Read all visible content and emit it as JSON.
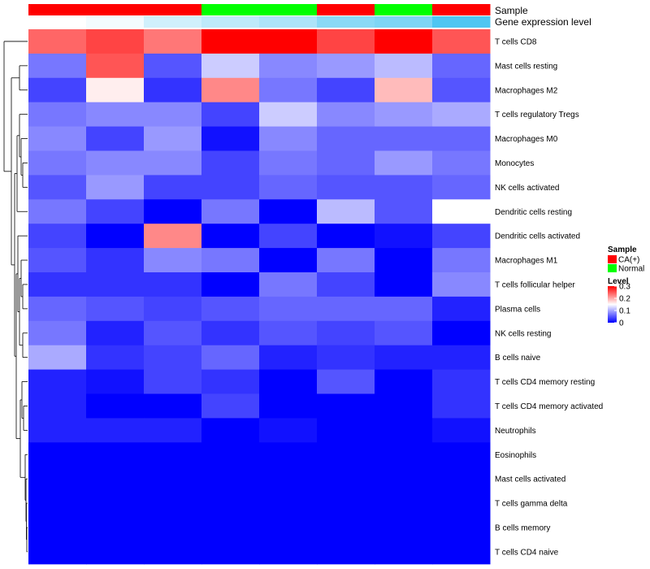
{
  "chart_data": {
    "type": "heatmap",
    "title": "",
    "annotations": {
      "sample_label": "Sample",
      "gene_label": "Gene expression level",
      "samples": [
        "CA(+)",
        "CA(+)",
        "CA(+)",
        "Normal",
        "Normal",
        "CA(+)",
        "Normal",
        "CA(+)"
      ],
      "gene_expression_level": [
        0.0,
        0.02,
        0.08,
        0.11,
        0.14,
        0.2,
        0.22,
        0.3
      ]
    },
    "rows": [
      "T cells CD8",
      "Mast cells resting",
      "Macrophages M2",
      "T cells regulatory  Tregs",
      "Macrophages M0",
      "Monocytes",
      "NK cells activated",
      "Dendritic cells resting",
      "Dendritic cells activated",
      "Macrophages M1",
      "T cells follicular helper",
      "Plasma cells",
      "NK cells resting",
      "B cells naive",
      "T cells CD4 memory resting",
      "T cells CD4 memory activated",
      "Neutrophils",
      "Eosinophils",
      "Mast cells activated",
      "T cells gamma delta",
      "B cells memory",
      "T cells CD4 naive"
    ],
    "values": [
      [
        0.24,
        0.26,
        0.23,
        0.3,
        0.3,
        0.26,
        0.3,
        0.25
      ],
      [
        0.07,
        0.25,
        0.05,
        0.12,
        0.08,
        0.09,
        0.11,
        0.06
      ],
      [
        0.04,
        0.16,
        0.03,
        0.22,
        0.07,
        0.04,
        0.19,
        0.05
      ],
      [
        0.07,
        0.08,
        0.08,
        0.04,
        0.12,
        0.08,
        0.09,
        0.1
      ],
      [
        0.08,
        0.04,
        0.09,
        0.01,
        0.08,
        0.06,
        0.06,
        0.06
      ],
      [
        0.07,
        0.08,
        0.08,
        0.04,
        0.07,
        0.06,
        0.09,
        0.07
      ],
      [
        0.05,
        0.09,
        0.04,
        0.04,
        0.06,
        0.05,
        0.05,
        0.06
      ],
      [
        0.07,
        0.04,
        0.0,
        0.07,
        0.0,
        0.11,
        0.05,
        0.15
      ],
      [
        0.04,
        0.0,
        0.22,
        0.0,
        0.04,
        0.0,
        0.01,
        0.04
      ],
      [
        0.05,
        0.03,
        0.08,
        0.07,
        0.0,
        0.07,
        0.0,
        0.07
      ],
      [
        0.03,
        0.03,
        0.03,
        0.0,
        0.07,
        0.04,
        0.0,
        0.08
      ],
      [
        0.06,
        0.05,
        0.04,
        0.05,
        0.06,
        0.06,
        0.06,
        0.02
      ],
      [
        0.07,
        0.02,
        0.05,
        0.03,
        0.05,
        0.04,
        0.05,
        0.0
      ],
      [
        0.1,
        0.03,
        0.04,
        0.06,
        0.02,
        0.03,
        0.02,
        0.02
      ],
      [
        0.02,
        0.01,
        0.04,
        0.03,
        0.0,
        0.05,
        0.0,
        0.03
      ],
      [
        0.02,
        0.0,
        0.0,
        0.04,
        0.0,
        0.0,
        0.0,
        0.03
      ],
      [
        0.02,
        0.02,
        0.02,
        0.0,
        0.01,
        0.0,
        0.0,
        0.01
      ],
      [
        0.0,
        0.0,
        0.0,
        0.0,
        0.0,
        0.0,
        0.0,
        0.0
      ],
      [
        0.0,
        0.0,
        0.0,
        0.0,
        0.0,
        0.0,
        0.0,
        0.0
      ],
      [
        0.0,
        0.0,
        0.0,
        0.0,
        0.0,
        0.0,
        0.0,
        0.0
      ],
      [
        0.0,
        0.0,
        0.0,
        0.0,
        0.0,
        0.0,
        0.0,
        0.0
      ],
      [
        0.0,
        0.0,
        0.0,
        0.0,
        0.0,
        0.0,
        0.0,
        0.0
      ]
    ],
    "scale": {
      "min": 0,
      "mid": 0.15,
      "max": 0.3
    },
    "row_dendrogram": true,
    "legend": {
      "position": "right",
      "sample_title": "Sample",
      "sample_entries": [
        {
          "label": "CA(+)",
          "color": "#ff0000"
        },
        {
          "label": "Normal",
          "color": "#00ff00"
        }
      ],
      "level_title": "Level",
      "level_ticks": [
        {
          "value": 0.3,
          "label": "0.3"
        },
        {
          "value": 0.2,
          "label": "0.2"
        },
        {
          "value": 0.1,
          "label": "0.1"
        },
        {
          "value": 0.0,
          "label": "0"
        }
      ]
    }
  },
  "colors": {
    "low": "#0000ff",
    "mid": "#ffffff",
    "high": "#ff0000",
    "gene_low": "#ffffff",
    "gene_high": "#4fc6f2",
    "dendrogram": "#000000"
  }
}
